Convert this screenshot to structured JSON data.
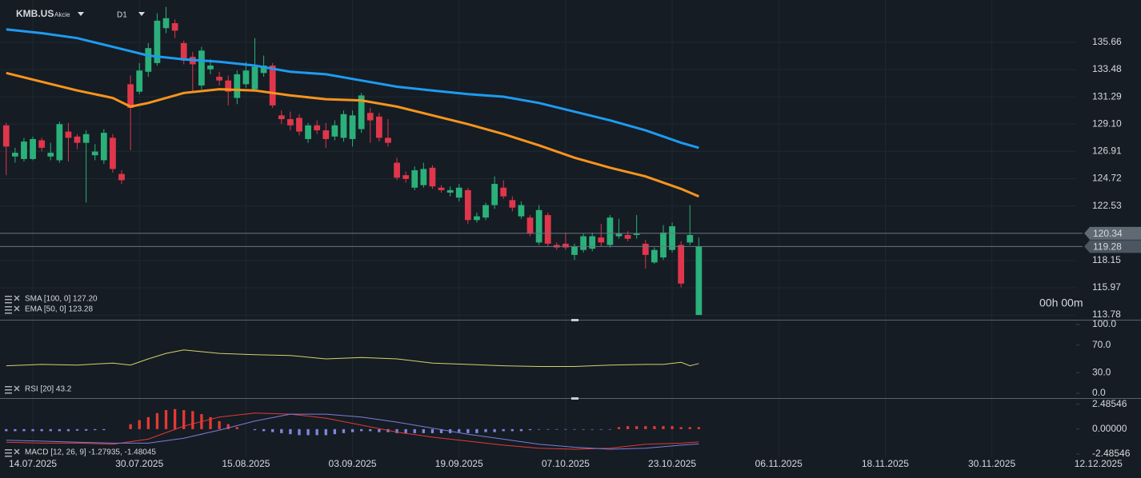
{
  "chart_data": [
    {
      "type": "candlestick",
      "title": "KMB.US",
      "subtitle": "Akcie",
      "timeframe": "D1",
      "annotation": "00h 00m",
      "up_color": "#2bb07a",
      "down_color": "#e0364b",
      "open": [
        129.0,
        126.5,
        126.3,
        126.3,
        127.8,
        126.5,
        126.2,
        128.5,
        128.1,
        127.6,
        126.6,
        126.2,
        128.0,
        125.1,
        132.3,
        131.7,
        133.3,
        134.0,
        136.8,
        137.2,
        135.6,
        134.5,
        132.2,
        133.5,
        132.9,
        132.6,
        131.2,
        132.3,
        131.9,
        133.2,
        133.8,
        129.8,
        129.5,
        129.6,
        127.9,
        129.0,
        128.6,
        128.1,
        128.0,
        127.9,
        128.7,
        130.0,
        129.7,
        128.0,
        126.0,
        125.0,
        124.0,
        124.2,
        125.6,
        124.0,
        123.6,
        123.2,
        123.8,
        121.4,
        121.6,
        122.6,
        124.0,
        123.0,
        121.7,
        121.6,
        119.6,
        121.8,
        119.4,
        119.5,
        118.6,
        119.0,
        119.1,
        120.0,
        119.4,
        120.1,
        120.2,
        120.2,
        119.5,
        118.0,
        118.4,
        119.0,
        119.4,
        119.6,
        113.78
      ],
      "high": [
        129.2,
        127.2,
        128.0,
        128.1,
        128.0,
        127.6,
        129.3,
        129.2,
        128.3,
        128.6,
        127.5,
        128.7,
        128.3,
        125.4,
        133.0,
        134.0,
        135.6,
        138.0,
        138.5,
        137.5,
        135.8,
        134.9,
        135.3,
        134.3,
        133.3,
        133.0,
        133.4,
        134.1,
        136.0,
        134.6,
        134.0,
        130.2,
        130.1,
        129.9,
        129.2,
        129.4,
        129.2,
        129.4,
        130.2,
        130.2,
        131.6,
        130.4,
        130.0,
        129.5,
        126.4,
        125.3,
        125.7,
        126.0,
        125.8,
        124.2,
        124.1,
        124.3,
        124.0,
        122.0,
        122.8,
        124.9,
        124.6,
        123.3,
        122.9,
        121.8,
        122.6,
        122.0,
        119.6,
        120.4,
        119.5,
        120.3,
        120.4,
        121.1,
        121.8,
        121.5,
        120.5,
        121.8,
        119.8,
        119.2,
        121.0,
        121.2,
        119.7,
        122.6,
        120.0
      ],
      "low": [
        125.0,
        126.0,
        126.1,
        126.2,
        126.9,
        126.2,
        126.0,
        126.1,
        127.1,
        122.8,
        126.2,
        125.9,
        125.2,
        124.3,
        127.0,
        131.5,
        132.9,
        133.8,
        136.4,
        136.0,
        133.9,
        131.7,
        131.9,
        133.1,
        132.2,
        130.6,
        130.7,
        132.0,
        131.7,
        132.9,
        130.4,
        129.1,
        128.6,
        128.2,
        127.6,
        128.3,
        127.2,
        127.8,
        127.7,
        127.3,
        128.4,
        127.6,
        127.7,
        127.3,
        124.6,
        124.4,
        123.8,
        124.0,
        123.9,
        123.6,
        123.3,
        122.9,
        121.1,
        121.2,
        121.4,
        122.3,
        123.1,
        122.1,
        121.5,
        120.1,
        119.4,
        119.3,
        119.0,
        119.0,
        118.2,
        118.8,
        118.9,
        119.3,
        119.2,
        119.9,
        119.7,
        119.9,
        117.5,
        117.9,
        118.2,
        118.8,
        116.0,
        119.4,
        113.78
      ],
      "close": [
        127.3,
        126.8,
        127.7,
        127.9,
        127.2,
        126.8,
        129.1,
        128.0,
        127.6,
        128.3,
        126.9,
        128.4,
        125.5,
        124.6,
        130.4,
        133.4,
        135.2,
        137.4,
        137.6,
        136.6,
        134.2,
        133.9,
        135.0,
        133.8,
        132.6,
        131.7,
        133.1,
        133.4,
        133.7,
        133.8,
        130.6,
        129.5,
        129.0,
        128.5,
        129.0,
        128.6,
        127.9,
        129.0,
        129.9,
        129.8,
        131.4,
        129.4,
        128.0,
        127.6,
        124.8,
        124.7,
        125.4,
        125.5,
        124.1,
        123.8,
        123.8,
        124.0,
        121.4,
        121.7,
        122.6,
        124.3,
        123.3,
        122.4,
        122.6,
        120.3,
        122.2,
        119.5,
        119.2,
        119.2,
        119.3,
        120.1,
        120.1,
        119.6,
        121.6,
        120.3,
        119.9,
        120.3,
        118.6,
        119.0,
        120.4,
        120.9,
        116.3,
        120.2,
        119.28
      ],
      "series": [
        {
          "name": "SMA [100, 0] 127.20",
          "color": "#1e9bf0",
          "x": [
            0,
            4,
            8,
            12,
            16,
            20,
            24,
            28,
            32,
            36,
            40,
            44,
            48,
            52,
            56,
            60,
            64,
            68,
            72,
            76,
            78
          ],
          "values": [
            136.7,
            136.4,
            136.0,
            135.3,
            134.6,
            134.3,
            134.1,
            133.8,
            133.3,
            133.1,
            132.6,
            132.1,
            131.8,
            131.5,
            131.3,
            130.8,
            130.1,
            129.4,
            128.6,
            127.6,
            127.2
          ]
        },
        {
          "name": "EMA [50, 0] 123.28",
          "color": "#f7941d",
          "x": [
            0,
            4,
            8,
            12,
            14,
            16,
            20,
            24,
            28,
            32,
            36,
            40,
            44,
            48,
            52,
            56,
            60,
            64,
            68,
            72,
            76,
            78
          ],
          "values": [
            133.2,
            132.5,
            131.8,
            131.2,
            130.5,
            130.8,
            131.6,
            131.9,
            131.8,
            131.4,
            131.1,
            131.0,
            130.5,
            129.8,
            129.1,
            128.3,
            127.4,
            126.4,
            125.6,
            124.9,
            123.9,
            123.3
          ]
        }
      ],
      "price_lines": [
        120.34,
        119.28
      ],
      "xlim": [
        -0.7,
        120.5
      ],
      "xticks": [
        {
          "value": 3,
          "label": "14.07.2025"
        },
        {
          "value": 15,
          "label": "30.07.2025"
        },
        {
          "value": 27,
          "label": "15.08.2025"
        },
        {
          "value": 39,
          "label": "03.09.2025"
        },
        {
          "value": 51,
          "label": "19.09.2025"
        },
        {
          "value": 63,
          "label": "07.10.2025"
        },
        {
          "value": 75,
          "label": "23.10.2025"
        },
        {
          "value": 87,
          "label": "06.11.2025"
        },
        {
          "value": 99,
          "label": "18.11.2025"
        },
        {
          "value": 111,
          "label": "30.11.2025"
        },
        {
          "value": 123,
          "label": "12.12.2025"
        }
      ],
      "ylim": [
        113.4,
        139.06
      ],
      "yticks": [
        135.66,
        133.48,
        131.29,
        {
          "value": 129.1,
          "label": "129.10"
        },
        126.91,
        124.72,
        122.53,
        118.15,
        115.97,
        113.78
      ],
      "grid": true
    },
    {
      "type": "line",
      "ylim": [
        0,
        100
      ],
      "yticks": [
        {
          "value": 100,
          "label": "100.0"
        },
        {
          "value": 70,
          "label": "70.0"
        },
        {
          "value": 30,
          "label": "30.0"
        },
        {
          "value": 0,
          "label": "0.0"
        }
      ],
      "series": [
        {
          "name": "RSI [20] 43.2",
          "color": "#d4d26a",
          "x": [
            0,
            4,
            8,
            12,
            14,
            16,
            18,
            20,
            24,
            28,
            32,
            36,
            40,
            44,
            48,
            52,
            56,
            60,
            64,
            68,
            72,
            74,
            76,
            77,
            78
          ],
          "values": [
            40,
            42,
            41,
            44,
            41,
            50,
            58,
            63,
            58,
            56,
            55,
            50,
            52,
            50,
            44,
            42,
            40,
            39,
            39,
            41,
            42,
            42,
            45,
            40,
            43.2
          ]
        }
      ]
    },
    {
      "type": "bar_line",
      "title": "MACD [12, 26, 9] -1.27935, -1.48045",
      "ylim": [
        -2.8,
        3.1
      ],
      "yticks": [
        {
          "value": 2.48546,
          "label": "2.48546"
        },
        {
          "value": 0,
          "label": "0.00000"
        },
        {
          "value": -2.48546,
          "label": "-2.48546"
        }
      ],
      "bar_up_color": "#e53935",
      "bar_down_color": "#7f86e0",
      "bars": [
        -0.2,
        -0.2,
        -0.2,
        -0.2,
        -0.2,
        -0.2,
        -0.2,
        -0.2,
        -0.15,
        -0.15,
        -0.1,
        -0.1,
        0,
        0,
        0.5,
        0.9,
        1.2,
        1.6,
        1.9,
        2.0,
        1.9,
        1.8,
        1.5,
        1.2,
        0.8,
        0.5,
        0.2,
        0,
        -0.1,
        -0.2,
        -0.3,
        -0.4,
        -0.5,
        -0.6,
        -0.6,
        -0.6,
        -0.6,
        -0.5,
        -0.4,
        -0.3,
        -0.2,
        -0.2,
        -0.3,
        -0.3,
        -0.4,
        -0.4,
        -0.4,
        -0.4,
        -0.4,
        -0.4,
        -0.4,
        -0.3,
        -0.4,
        -0.4,
        -0.3,
        -0.3,
        -0.2,
        -0.2,
        -0.2,
        -0.1,
        -0.05,
        -0.05,
        -0.05,
        -0.05,
        -0.05,
        -0.05,
        -0.05,
        -0.05,
        -0.05,
        0.2,
        0.3,
        0.3,
        0.3,
        0.3,
        0.3,
        0.3,
        0.2,
        0.2,
        0.2
      ],
      "series": [
        {
          "color": "#e53935",
          "x": [
            0,
            4,
            8,
            12,
            16,
            20,
            24,
            28,
            32,
            36,
            40,
            44,
            48,
            52,
            56,
            60,
            64,
            68,
            72,
            76,
            78
          ],
          "values": [
            -1.3,
            -1.4,
            -1.4,
            -1.5,
            -1.0,
            0.3,
            1.2,
            1.6,
            1.5,
            1.1,
            0.4,
            -0.3,
            -0.8,
            -1.2,
            -1.6,
            -1.9,
            -2.0,
            -1.9,
            -1.5,
            -1.4,
            -1.28
          ]
        },
        {
          "color": "#7b7fd6",
          "x": [
            0,
            4,
            8,
            12,
            16,
            20,
            24,
            28,
            32,
            36,
            40,
            44,
            48,
            52,
            56,
            60,
            64,
            68,
            72,
            76,
            78
          ],
          "values": [
            -1.1,
            -1.2,
            -1.3,
            -1.4,
            -1.4,
            -0.9,
            -0.1,
            0.8,
            1.5,
            1.5,
            1.2,
            0.7,
            0.1,
            -0.5,
            -1.0,
            -1.5,
            -1.8,
            -2.0,
            -1.9,
            -1.6,
            -1.48
          ]
        }
      ]
    }
  ]
}
